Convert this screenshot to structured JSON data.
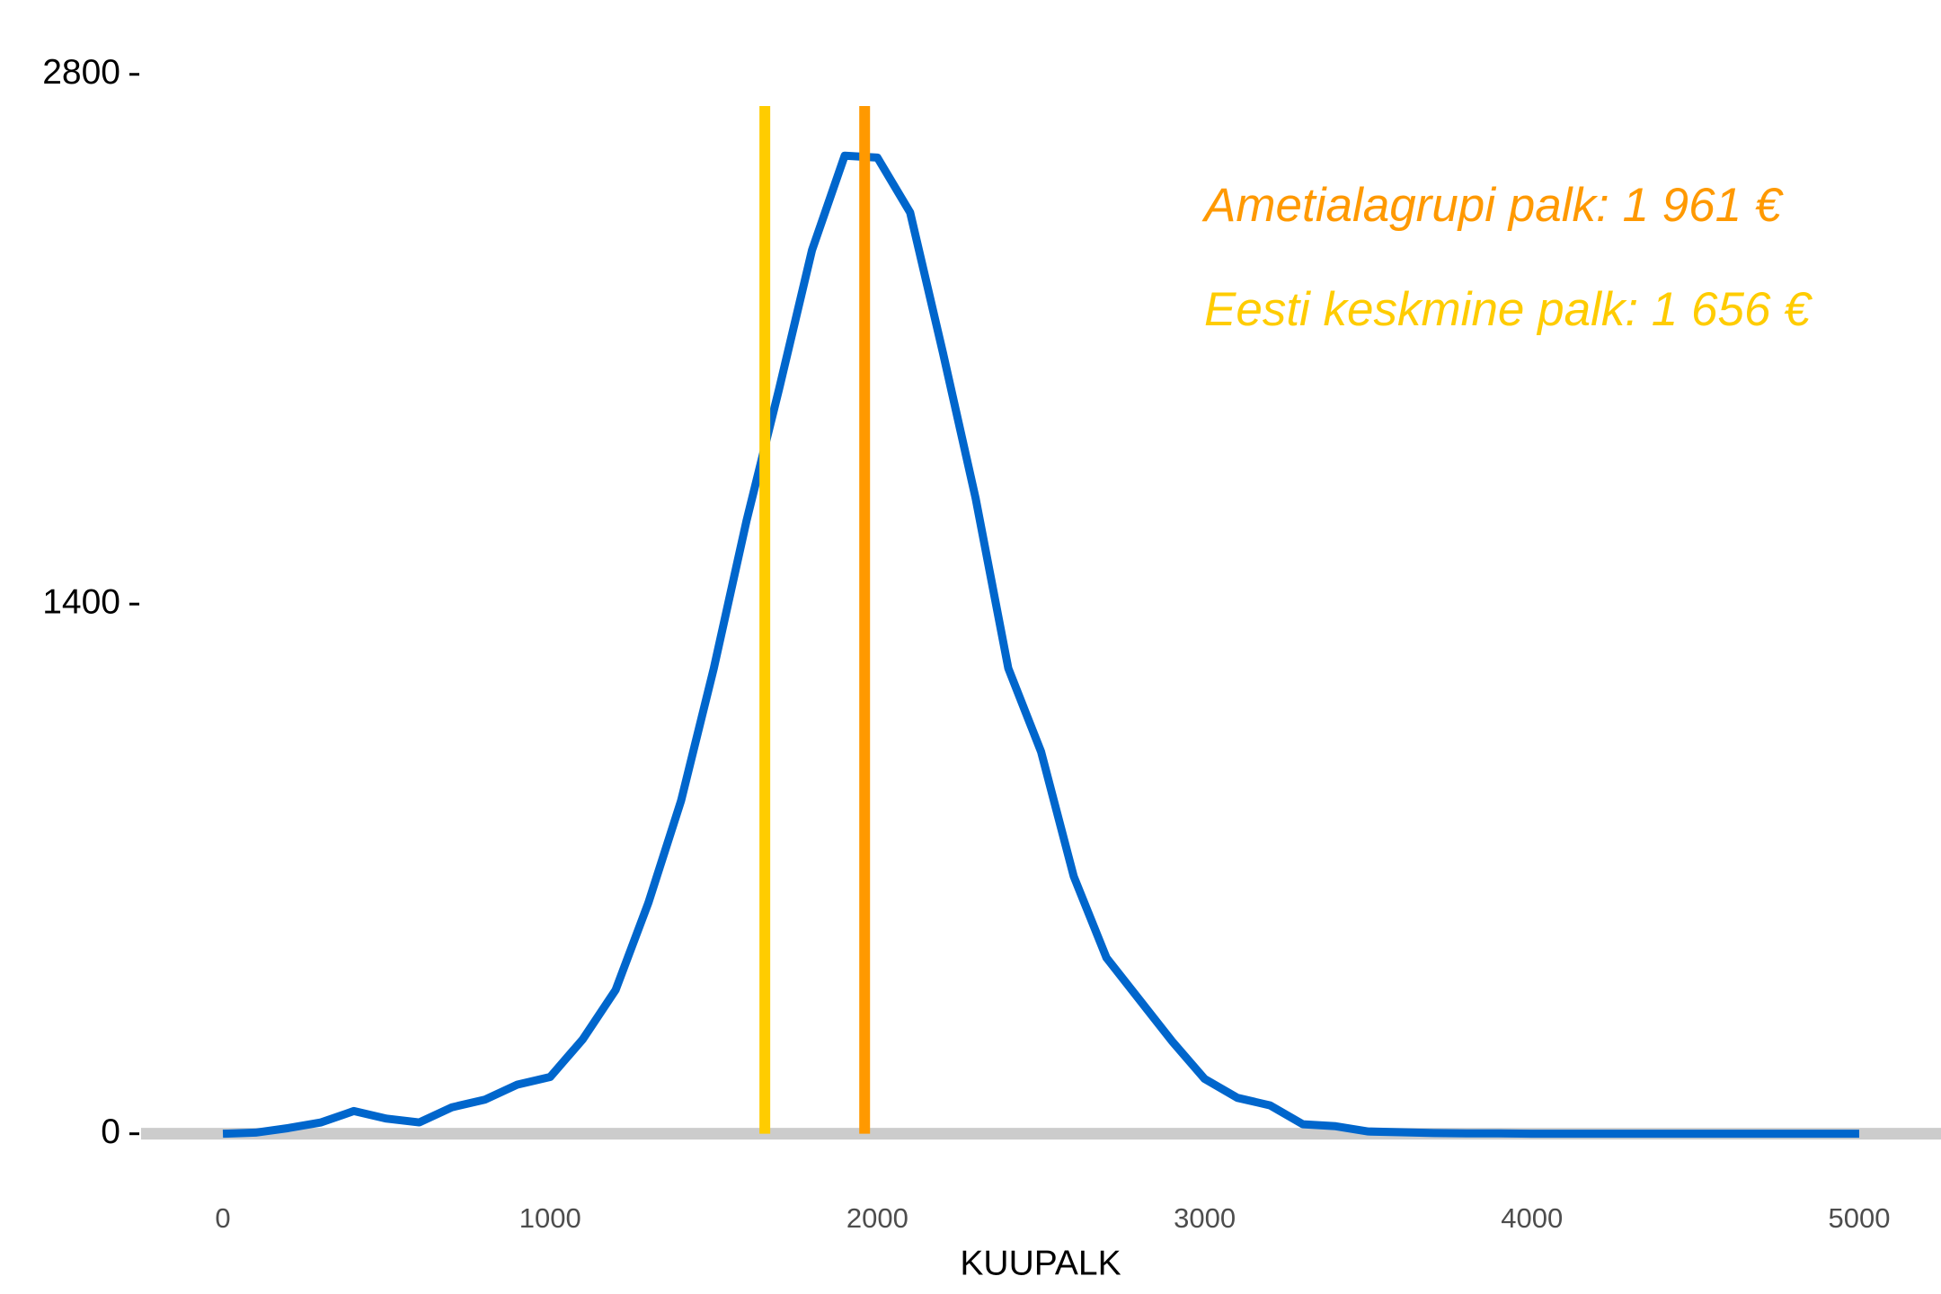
{
  "chart_data": {
    "type": "line",
    "x_label": "KUUPALK",
    "x": [
      0,
      100,
      200,
      300,
      400,
      500,
      600,
      700,
      800,
      900,
      1000,
      1100,
      1200,
      1300,
      1400,
      1500,
      1600,
      1700,
      1800,
      1900,
      2000,
      2100,
      2200,
      2300,
      2400,
      2500,
      2600,
      2700,
      2800,
      2900,
      3000,
      3100,
      3200,
      3300,
      3400,
      3500,
      3600,
      3700,
      3800,
      3900,
      4000,
      4100,
      4200,
      4300,
      4400,
      4500,
      4600,
      4700,
      4800,
      4900,
      5000
    ],
    "series": [
      {
        "color": "#0066cc",
        "values": [
          0,
          3,
          15,
          30,
          60,
          40,
          30,
          70,
          90,
          130,
          150,
          250,
          380,
          610,
          880,
          1230,
          1620,
          1970,
          2335,
          2585,
          2580,
          2435,
          2065,
          1680,
          1230,
          1010,
          680,
          465,
          355,
          245,
          145,
          95,
          75,
          25,
          20,
          6,
          4,
          2,
          1,
          1,
          0,
          0,
          0,
          0,
          0,
          0,
          0,
          0,
          0,
          0,
          0
        ]
      }
    ],
    "reference_lines": [
      {
        "label": "Ametialagrupi palk: 1 961 €",
        "value": 1961,
        "color": "#ff9900"
      },
      {
        "label": "Eesti keskmine palk: 1 656 €",
        "value": 1656,
        "color": "#ffcc00"
      }
    ],
    "xlim": [
      -250,
      5250
    ],
    "xticks": [
      0,
      1000,
      2000,
      3000,
      4000,
      5000
    ],
    "ylim": [
      -110,
      2930
    ],
    "yticks": [
      0,
      1400,
      2800
    ]
  }
}
